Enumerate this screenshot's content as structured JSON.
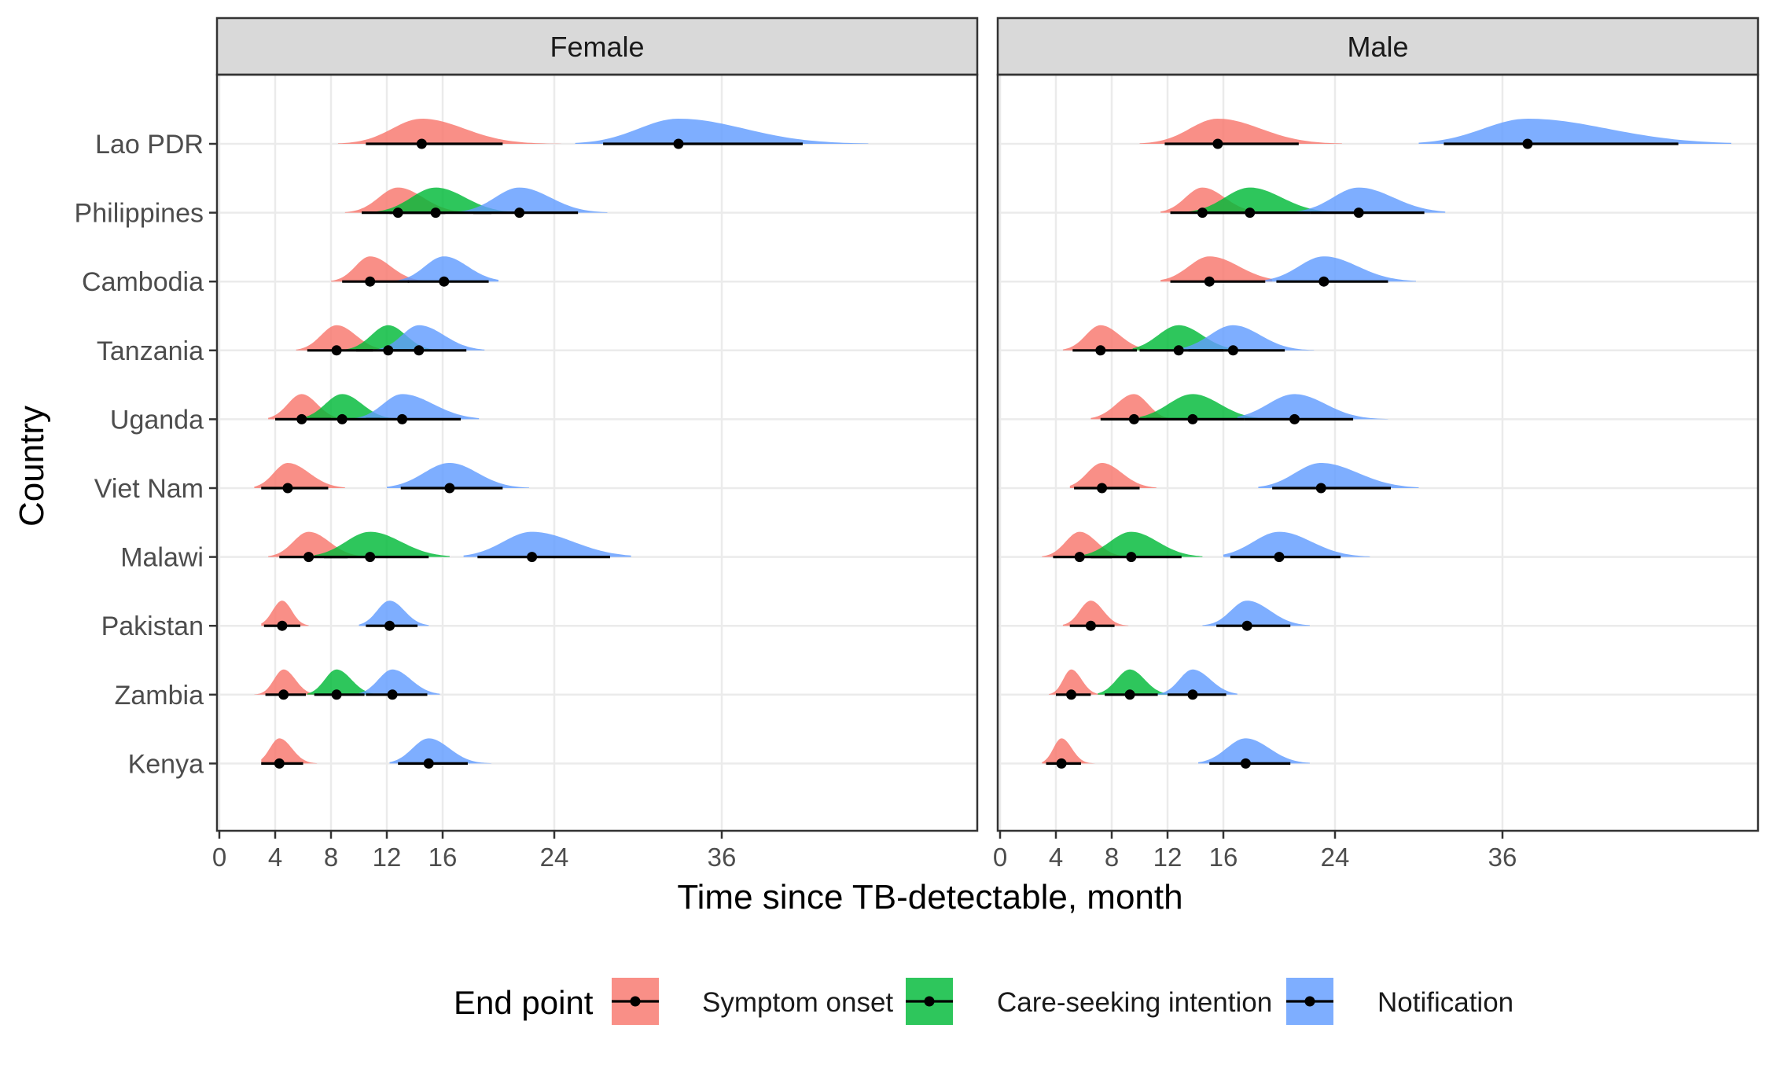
{
  "chart_data": {
    "type": "ridgeline",
    "xlabel": "Time since TB-detectable, month",
    "ylabel": "Country",
    "xlim": [
      0,
      55
    ],
    "x_ticks": [
      0,
      4,
      8,
      12,
      16,
      24,
      36
    ],
    "grid": true,
    "legend": {
      "title": "End point",
      "position": "bottom",
      "entries": [
        "Symptom onset",
        "Care-seeking intention",
        "Notification"
      ]
    },
    "colors": {
      "Symptom onset": "#F8766D",
      "Care-seeking intention": "#00BA38",
      "Notification": "#619CFF"
    },
    "countries": [
      "Lao PDR",
      "Philippines",
      "Cambodia",
      "Tanzania",
      "Uganda",
      "Viet Nam",
      "Malawi",
      "Pakistan",
      "Zambia",
      "Kenya"
    ],
    "panels": [
      {
        "title": "Female",
        "series": [
          {
            "country": "Lao PDR",
            "endpoint": "Symptom onset",
            "median": 14.5,
            "lo": 10.5,
            "hi": 20.3,
            "min": 8.5,
            "max": 24.5
          },
          {
            "country": "Lao PDR",
            "endpoint": "Notification",
            "median": 32.9,
            "lo": 27.5,
            "hi": 41.8,
            "min": 25.5,
            "max": 46.5
          },
          {
            "country": "Philippines",
            "endpoint": "Symptom onset",
            "median": 12.8,
            "lo": 10.2,
            "hi": 16.2,
            "min": 9.0,
            "max": 18.0
          },
          {
            "country": "Philippines",
            "endpoint": "Care-seeking intention",
            "median": 15.5,
            "lo": 12.2,
            "hi": 19.5,
            "min": 11.0,
            "max": 21.5
          },
          {
            "country": "Philippines",
            "endpoint": "Notification",
            "median": 21.5,
            "lo": 18.2,
            "hi": 25.7,
            "min": 17.0,
            "max": 27.8
          },
          {
            "country": "Cambodia",
            "endpoint": "Symptom onset",
            "median": 10.8,
            "lo": 8.8,
            "hi": 13.6,
            "min": 8.0,
            "max": 14.8
          },
          {
            "country": "Cambodia",
            "endpoint": "Notification",
            "median": 16.1,
            "lo": 13.5,
            "hi": 19.3,
            "min": 12.5,
            "max": 20.0
          },
          {
            "country": "Tanzania",
            "endpoint": "Symptom onset",
            "median": 8.4,
            "lo": 6.3,
            "hi": 11.0,
            "min": 5.5,
            "max": 12.0
          },
          {
            "country": "Tanzania",
            "endpoint": "Care-seeking intention",
            "median": 12.1,
            "lo": 9.8,
            "hi": 14.5,
            "min": 9.0,
            "max": 15.5
          },
          {
            "country": "Tanzania",
            "endpoint": "Notification",
            "median": 14.3,
            "lo": 12.0,
            "hi": 17.7,
            "min": 11.0,
            "max": 19.0
          },
          {
            "country": "Uganda",
            "endpoint": "Symptom onset",
            "median": 5.9,
            "lo": 4.0,
            "hi": 8.0,
            "min": 3.5,
            "max": 9.0
          },
          {
            "country": "Uganda",
            "endpoint": "Care-seeking intention",
            "median": 8.8,
            "lo": 6.5,
            "hi": 11.5,
            "min": 6.0,
            "max": 12.5
          },
          {
            "country": "Uganda",
            "endpoint": "Notification",
            "median": 13.1,
            "lo": 10.5,
            "hi": 17.3,
            "min": 9.5,
            "max": 18.6
          },
          {
            "country": "Viet Nam",
            "endpoint": "Symptom onset",
            "median": 4.9,
            "lo": 3.0,
            "hi": 7.8,
            "min": 2.5,
            "max": 9.0
          },
          {
            "country": "Viet Nam",
            "endpoint": "Notification",
            "median": 16.5,
            "lo": 13.0,
            "hi": 20.3,
            "min": 12.0,
            "max": 22.2
          },
          {
            "country": "Malawi",
            "endpoint": "Symptom onset",
            "median": 6.4,
            "lo": 4.3,
            "hi": 9.2,
            "min": 3.5,
            "max": 10.5
          },
          {
            "country": "Malawi",
            "endpoint": "Care-seeking intention",
            "median": 10.8,
            "lo": 7.5,
            "hi": 15.0,
            "min": 6.8,
            "max": 16.5
          },
          {
            "country": "Malawi",
            "endpoint": "Notification",
            "median": 22.4,
            "lo": 18.5,
            "hi": 28.0,
            "min": 17.5,
            "max": 29.5
          },
          {
            "country": "Pakistan",
            "endpoint": "Symptom onset",
            "median": 4.5,
            "lo": 3.2,
            "hi": 5.8,
            "min": 3.0,
            "max": 6.4
          },
          {
            "country": "Pakistan",
            "endpoint": "Notification",
            "median": 12.2,
            "lo": 10.5,
            "hi": 14.2,
            "min": 10.0,
            "max": 15.0
          },
          {
            "country": "Zambia",
            "endpoint": "Symptom onset",
            "median": 4.6,
            "lo": 3.3,
            "hi": 6.2,
            "min": 2.5,
            "max": 7.0
          },
          {
            "country": "Zambia",
            "endpoint": "Care-seeking intention",
            "median": 8.4,
            "lo": 6.8,
            "hi": 10.4,
            "min": 6.3,
            "max": 11.0
          },
          {
            "country": "Zambia",
            "endpoint": "Notification",
            "median": 12.4,
            "lo": 10.5,
            "hi": 14.9,
            "min": 10.0,
            "max": 15.8
          },
          {
            "country": "Kenya",
            "endpoint": "Symptom onset",
            "median": 4.3,
            "lo": 3.0,
            "hi": 6.0,
            "min": 3.0,
            "max": 7.0
          },
          {
            "country": "Kenya",
            "endpoint": "Notification",
            "median": 15.0,
            "lo": 12.8,
            "hi": 17.8,
            "min": 12.2,
            "max": 19.5
          }
        ]
      },
      {
        "title": "Male",
        "series": [
          {
            "country": "Lao PDR",
            "endpoint": "Symptom onset",
            "median": 15.6,
            "lo": 11.8,
            "hi": 21.4,
            "min": 10.0,
            "max": 24.5
          },
          {
            "country": "Lao PDR",
            "endpoint": "Notification",
            "median": 37.8,
            "lo": 31.8,
            "hi": 48.6,
            "min": 30.0,
            "max": 52.4
          },
          {
            "country": "Philippines",
            "endpoint": "Symptom onset",
            "median": 14.5,
            "lo": 12.2,
            "hi": 17.5,
            "min": 11.5,
            "max": 19.0
          },
          {
            "country": "Philippines",
            "endpoint": "Care-seeking intention",
            "median": 17.9,
            "lo": 14.5,
            "hi": 22.2,
            "min": 13.5,
            "max": 23.5
          },
          {
            "country": "Philippines",
            "endpoint": "Notification",
            "median": 25.7,
            "lo": 22.2,
            "hi": 30.4,
            "min": 21.0,
            "max": 31.9
          },
          {
            "country": "Cambodia",
            "endpoint": "Symptom onset",
            "median": 15.0,
            "lo": 12.2,
            "hi": 19.0,
            "min": 11.5,
            "max": 19.5
          },
          {
            "country": "Cambodia",
            "endpoint": "Notification",
            "median": 23.2,
            "lo": 19.8,
            "hi": 27.8,
            "min": 19.0,
            "max": 29.8
          },
          {
            "country": "Tanzania",
            "endpoint": "Symptom onset",
            "median": 7.2,
            "lo": 5.2,
            "hi": 9.8,
            "min": 4.5,
            "max": 10.5
          },
          {
            "country": "Tanzania",
            "endpoint": "Care-seeking intention",
            "median": 12.8,
            "lo": 10.0,
            "hi": 16.0,
            "min": 9.5,
            "max": 16.5
          },
          {
            "country": "Tanzania",
            "endpoint": "Notification",
            "median": 16.7,
            "lo": 13.5,
            "hi": 20.4,
            "min": 12.5,
            "max": 22.5
          },
          {
            "country": "Uganda",
            "endpoint": "Symptom onset",
            "median": 9.6,
            "lo": 7.2,
            "hi": 11.5,
            "min": 6.5,
            "max": 12.5
          },
          {
            "country": "Uganda",
            "endpoint": "Care-seeking intention",
            "median": 13.8,
            "lo": 10.5,
            "hi": 17.5,
            "min": 10.0,
            "max": 18.5
          },
          {
            "country": "Uganda",
            "endpoint": "Notification",
            "median": 21.1,
            "lo": 17.5,
            "hi": 25.3,
            "min": 17.0,
            "max": 27.8
          },
          {
            "country": "Viet Nam",
            "endpoint": "Symptom onset",
            "median": 7.3,
            "lo": 5.3,
            "hi": 10.0,
            "min": 5.0,
            "max": 11.2
          },
          {
            "country": "Viet Nam",
            "endpoint": "Notification",
            "median": 23.0,
            "lo": 19.5,
            "hi": 28.0,
            "min": 18.5,
            "max": 30.0
          },
          {
            "country": "Malawi",
            "endpoint": "Symptom onset",
            "median": 5.7,
            "lo": 3.8,
            "hi": 8.0,
            "min": 3.0,
            "max": 9.5
          },
          {
            "country": "Malawi",
            "endpoint": "Care-seeking intention",
            "median": 9.4,
            "lo": 6.5,
            "hi": 13.0,
            "min": 6.0,
            "max": 14.5
          },
          {
            "country": "Malawi",
            "endpoint": "Notification",
            "median": 20.0,
            "lo": 16.5,
            "hi": 24.4,
            "min": 16.0,
            "max": 26.5
          },
          {
            "country": "Pakistan",
            "endpoint": "Symptom onset",
            "median": 6.5,
            "lo": 5.0,
            "hi": 8.2,
            "min": 4.5,
            "max": 9.2
          },
          {
            "country": "Pakistan",
            "endpoint": "Notification",
            "median": 17.7,
            "lo": 15.5,
            "hi": 20.8,
            "min": 14.5,
            "max": 22.2
          },
          {
            "country": "Zambia",
            "endpoint": "Symptom onset",
            "median": 5.1,
            "lo": 4.0,
            "hi": 6.5,
            "min": 3.5,
            "max": 7.5
          },
          {
            "country": "Zambia",
            "endpoint": "Care-seeking intention",
            "median": 9.3,
            "lo": 7.5,
            "hi": 11.3,
            "min": 7.0,
            "max": 12.0
          },
          {
            "country": "Zambia",
            "endpoint": "Notification",
            "median": 13.8,
            "lo": 12.0,
            "hi": 16.2,
            "min": 11.0,
            "max": 17.0
          },
          {
            "country": "Kenya",
            "endpoint": "Symptom onset",
            "median": 4.4,
            "lo": 3.3,
            "hi": 5.8,
            "min": 3.0,
            "max": 6.8
          },
          {
            "country": "Kenya",
            "endpoint": "Notification",
            "median": 17.6,
            "lo": 15.0,
            "hi": 20.8,
            "min": 14.2,
            "max": 22.2
          }
        ]
      }
    ]
  }
}
